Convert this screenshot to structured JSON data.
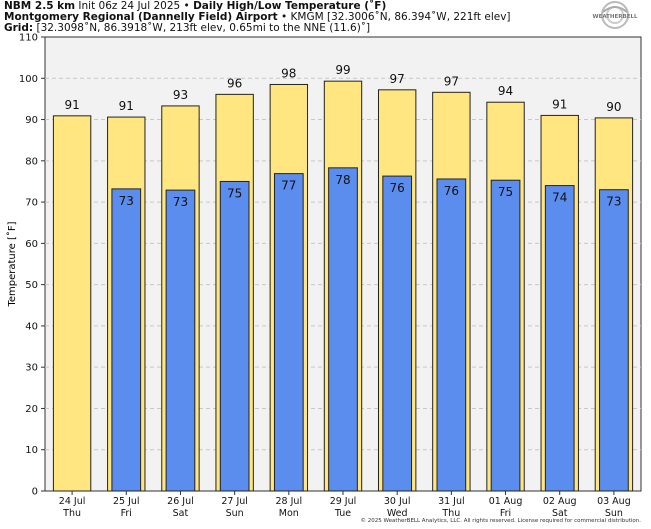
{
  "header": {
    "model": "NBM 2.5 km",
    "init": "Init 06z 24 Jul 2025",
    "product": "Daily High/Low Temperature (˚F)",
    "station_name": "Montgomery Regional (Dannelly Field) Airport",
    "station_info": "KMGM [32.3006˚N, 86.394˚W, 221ft elev]",
    "grid_label": "Grid:",
    "grid_info": "[32.3098˚N, 86.3918˚W, 213ft elev, 0.65mi to the NNE (11.6)˚]"
  },
  "logo": {
    "text": "WEATHERBELL",
    "icon": "swirl-logo-icon"
  },
  "footer": "© 2025 WeatherBELL Analytics, LLC. All rights reserved. License required for commercial distribution.",
  "colors": {
    "high": "#ffe680",
    "low": "#5b8def",
    "plot_bg": "#f2f2f2",
    "grid": "#c8c8c8"
  },
  "chart_data": {
    "type": "bar",
    "ylabel": "Temperature [˚F]",
    "ylim": [
      0,
      110
    ],
    "yticks": [
      0,
      10,
      20,
      30,
      40,
      50,
      60,
      70,
      80,
      90,
      100,
      110
    ],
    "grid": true,
    "categories": [
      [
        "24 Jul",
        "Thu"
      ],
      [
        "25 Jul",
        "Fri"
      ],
      [
        "26 Jul",
        "Sat"
      ],
      [
        "27 Jul",
        "Sun"
      ],
      [
        "28 Jul",
        "Mon"
      ],
      [
        "29 Jul",
        "Tue"
      ],
      [
        "30 Jul",
        "Wed"
      ],
      [
        "31 Jul",
        "Thu"
      ],
      [
        "01 Aug",
        "Fri"
      ],
      [
        "02 Aug",
        "Sat"
      ],
      [
        "03 Aug",
        "Sun"
      ]
    ],
    "series": [
      {
        "values": [
          90.9,
          90.6,
          93.3,
          96.1,
          98.5,
          99.3,
          97.2,
          96.6,
          94.2,
          91.0,
          90.4
        ],
        "labels": [
          "91",
          "91",
          "93",
          "96",
          "98",
          "99",
          "97",
          "97",
          "94",
          "91",
          "90"
        ]
      },
      {
        "values": [
          null,
          73.2,
          72.9,
          75.0,
          76.9,
          78.3,
          76.3,
          75.6,
          75.3,
          74.0,
          73.0
        ],
        "labels": [
          "",
          "73",
          "73",
          "75",
          "77",
          "78",
          "76",
          "76",
          "75",
          "74",
          "73"
        ]
      }
    ]
  }
}
